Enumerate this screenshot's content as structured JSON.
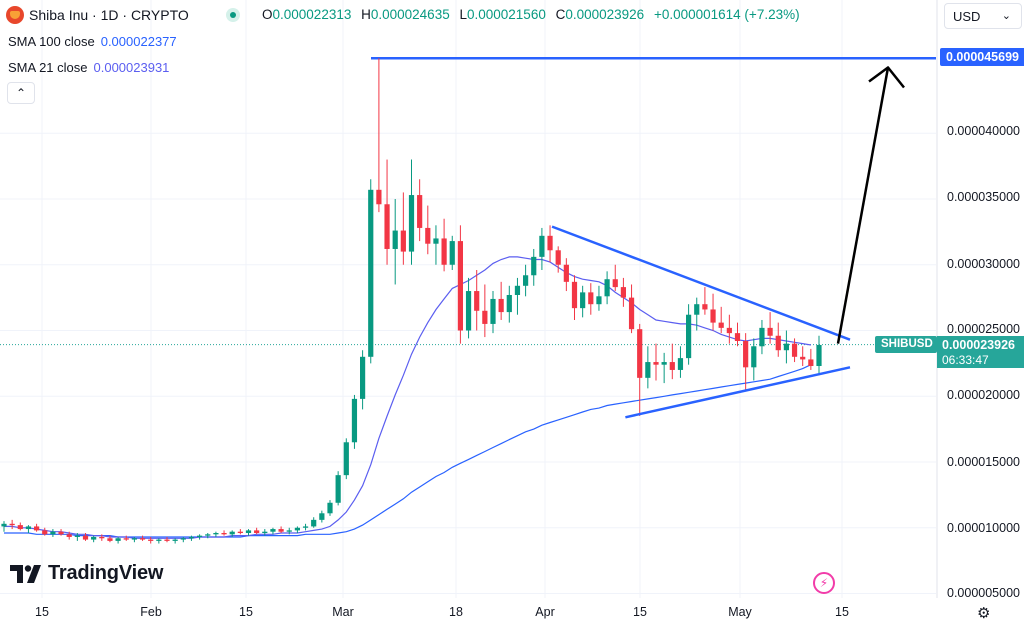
{
  "header": {
    "symbol_title": "Shiba Inu · 1D · CRYPTO",
    "ohlc": [
      {
        "label": "O",
        "value": "0.000022313"
      },
      {
        "label": "H",
        "value": "0.000024635"
      },
      {
        "label": "L",
        "value": "0.000021560"
      },
      {
        "label": "C",
        "value": "0.000023926"
      }
    ],
    "change": "+0.000001614 (+7.23%)",
    "currency": "USD"
  },
  "indicators": [
    {
      "label": "SMA 100 close",
      "value": "0.000022377",
      "color": "#2962ff"
    },
    {
      "label": "SMA 21 close",
      "value": "0.000023931",
      "color": "#5b5ef0"
    }
  ],
  "price_scale": {
    "top_tag": "0.000045699",
    "symbol_tag": "SHIBUSD",
    "last_price": "0.000023926",
    "countdown": "06:33:47"
  },
  "branding": {
    "logo_text": "TradingView"
  },
  "icons": {
    "collapse": "chevron-up-icon",
    "currency_menu": "chevron-down-icon",
    "live": "live-status-icon",
    "bolt": "lightning-icon",
    "settings": "gear-icon"
  },
  "colors": {
    "up": "#089981",
    "down": "#f23645",
    "sma100": "#2962ff",
    "sma21": "#5b5ef0",
    "drawing": "#2962ff",
    "arrow": "#000000"
  },
  "chart_data": {
    "type": "candlestick",
    "title": "Shiba Inu · 1D · CRYPTO",
    "y_axis_ticks": [
      "0.000040000",
      "0.000035000",
      "0.000030000",
      "0.000025000",
      "0.000020000",
      "0.000015000",
      "0.000010000",
      "0.000005000"
    ],
    "x_axis_ticks": [
      "15",
      "Feb",
      "15",
      "Mar",
      "18",
      "Apr",
      "15",
      "May",
      "15"
    ],
    "ylim": [
      4.5e-06,
      5.05e-05
    ],
    "candles_ohlc": [
      [
        1.01e-05,
        1.05e-05,
        9.7e-06,
        1.03e-05
      ],
      [
        1.03e-05,
        1.06e-05,
        9.9e-06,
        1.02e-05
      ],
      [
        1.02e-05,
        1.04e-05,
        9.8e-06,
        9.9e-06
      ],
      [
        9.9e-06,
        1.02e-05,
        9.6e-06,
        1.01e-05
      ],
      [
        1.01e-05,
        1.03e-05,
        9.7e-06,
        9.8e-06
      ],
      [
        9.8e-06,
        1e-05,
        9.4e-06,
        9.5e-06
      ],
      [
        9.5e-06,
        9.9e-06,
        9.3e-06,
        9.7e-06
      ],
      [
        9.7e-06,
        9.9e-06,
        9.4e-06,
        9.5e-06
      ],
      [
        9.5e-06,
        9.7e-06,
        9.1e-06,
        9.3e-06
      ],
      [
        9.3e-06,
        9.6e-06,
        9e-06,
        9.4e-06
      ],
      [
        9.4e-06,
        9.6e-06,
        9e-06,
        9.1e-06
      ],
      [
        9.1e-06,
        9.4e-06,
        8.9e-06,
        9.3e-06
      ],
      [
        9.3e-06,
        9.5e-06,
        9e-06,
        9.2e-06
      ],
      [
        9.2e-06,
        9.4e-06,
        8.9e-06,
        9e-06
      ],
      [
        9e-06,
        9.3e-06,
        8.8e-06,
        9.2e-06
      ],
      [
        9.2e-06,
        9.4e-06,
        9e-06,
        9.1e-06
      ],
      [
        9.1e-06,
        9.3e-06,
        8.9e-06,
        9.2e-06
      ],
      [
        9.2e-06,
        9.4e-06,
        9e-06,
        9.1e-06
      ],
      [
        9.1e-06,
        9.3e-06,
        8.8e-06,
        9e-06
      ],
      [
        9e-06,
        9.2e-06,
        8.8e-06,
        9.1e-06
      ],
      [
        9.1e-06,
        9.3e-06,
        8.9e-06,
        9e-06
      ],
      [
        9e-06,
        9.2e-06,
        8.8e-06,
        9.1e-06
      ],
      [
        9.1e-06,
        9.3e-06,
        8.9e-06,
        9.2e-06
      ],
      [
        9.2e-06,
        9.4e-06,
        9e-06,
        9.3e-06
      ],
      [
        9.3e-06,
        9.5e-06,
        9.1e-06,
        9.4e-06
      ],
      [
        9.4e-06,
        9.6e-06,
        9.2e-06,
        9.5e-06
      ],
      [
        9.5e-06,
        9.7e-06,
        9.3e-06,
        9.6e-06
      ],
      [
        9.6e-06,
        9.8e-06,
        9.4e-06,
        9.5e-06
      ],
      [
        9.5e-06,
        9.8e-06,
        9.3e-06,
        9.7e-06
      ],
      [
        9.7e-06,
        9.9e-06,
        9.5e-06,
        9.6e-06
      ],
      [
        9.6e-06,
        9.9e-06,
        9.4e-06,
        9.8e-06
      ],
      [
        9.8e-06,
        1e-05,
        9.5e-06,
        9.6e-06
      ],
      [
        9.6e-06,
        9.9e-06,
        9.4e-06,
        9.7e-06
      ],
      [
        9.7e-06,
        1e-05,
        9.5e-06,
        9.9e-06
      ],
      [
        9.9e-06,
        1.01e-05,
        9.6e-06,
        9.7e-06
      ],
      [
        9.7e-06,
        1e-05,
        9.5e-06,
        9.8e-06
      ],
      [
        9.8e-06,
        1.01e-05,
        9.6e-06,
        1e-05
      ],
      [
        1e-05,
        1.03e-05,
        9.8e-06,
        1.01e-05
      ],
      [
        1.01e-05,
        1.08e-05,
        1e-05,
        1.06e-05
      ],
      [
        1.06e-05,
        1.13e-05,
        1.04e-05,
        1.11e-05
      ],
      [
        1.11e-05,
        1.21e-05,
        1.09e-05,
        1.19e-05
      ],
      [
        1.19e-05,
        1.43e-05,
        1.17e-05,
        1.4e-05
      ],
      [
        1.4e-05,
        1.68e-05,
        1.37e-05,
        1.65e-05
      ],
      [
        1.65e-05,
        2.01e-05,
        1.6e-05,
        1.98e-05
      ],
      [
        1.98e-05,
        2.35e-05,
        1.9e-05,
        2.3e-05
      ],
      [
        2.3e-05,
        3.65e-05,
        2.25e-05,
        3.57e-05
      ],
      [
        3.57e-05,
        4.57e-05,
        3.4e-05,
        3.46e-05
      ],
      [
        3.46e-05,
        3.8e-05,
        3e-05,
        3.12e-05
      ],
      [
        3.12e-05,
        3.5e-05,
        2.85e-05,
        3.26e-05
      ],
      [
        3.26e-05,
        3.55e-05,
        3e-05,
        3.1e-05
      ],
      [
        3.1e-05,
        3.8e-05,
        3e-05,
        3.53e-05
      ],
      [
        3.53e-05,
        3.65e-05,
        3.18e-05,
        3.28e-05
      ],
      [
        3.28e-05,
        3.45e-05,
        3.08e-05,
        3.16e-05
      ],
      [
        3.16e-05,
        3.3e-05,
        3e-05,
        3.2e-05
      ],
      [
        3.2e-05,
        3.35e-05,
        2.95e-05,
        3e-05
      ],
      [
        3e-05,
        3.22e-05,
        2.96e-05,
        3.18e-05
      ],
      [
        3.18e-05,
        3.3e-05,
        2.4e-05,
        2.5e-05
      ],
      [
        2.5e-05,
        2.9e-05,
        2.44e-05,
        2.8e-05
      ],
      [
        2.8e-05,
        2.96e-05,
        2.5e-05,
        2.65e-05
      ],
      [
        2.65e-05,
        2.85e-05,
        2.45e-05,
        2.55e-05
      ],
      [
        2.55e-05,
        2.8e-05,
        2.48e-05,
        2.74e-05
      ],
      [
        2.74e-05,
        2.87e-05,
        2.58e-05,
        2.64e-05
      ],
      [
        2.64e-05,
        2.84e-05,
        2.56e-05,
        2.77e-05
      ],
      [
        2.77e-05,
        2.9e-05,
        2.62e-05,
        2.84e-05
      ],
      [
        2.84e-05,
        3e-05,
        2.76e-05,
        2.92e-05
      ],
      [
        2.92e-05,
        3.12e-05,
        2.84e-05,
        3.06e-05
      ],
      [
        3.06e-05,
        3.28e-05,
        2.96e-05,
        3.22e-05
      ],
      [
        3.22e-05,
        3.3e-05,
        3.02e-05,
        3.11e-05
      ],
      [
        3.11e-05,
        3.14e-05,
        2.94e-05,
        3e-05
      ],
      [
        3e-05,
        3.05e-05,
        2.8e-05,
        2.87e-05
      ],
      [
        2.87e-05,
        2.92e-05,
        2.58e-05,
        2.67e-05
      ],
      [
        2.67e-05,
        2.84e-05,
        2.6e-05,
        2.79e-05
      ],
      [
        2.79e-05,
        2.86e-05,
        2.62e-05,
        2.7e-05
      ],
      [
        2.7e-05,
        2.84e-05,
        2.65e-05,
        2.76e-05
      ],
      [
        2.76e-05,
        2.95e-05,
        2.7e-05,
        2.89e-05
      ],
      [
        2.89e-05,
        3e-05,
        2.8e-05,
        2.83e-05
      ],
      [
        2.83e-05,
        2.9e-05,
        2.68e-05,
        2.75e-05
      ],
      [
        2.75e-05,
        2.85e-05,
        2.48e-05,
        2.51e-05
      ],
      [
        2.51e-05,
        2.55e-05,
        1.85e-05,
        2.14e-05
      ],
      [
        2.14e-05,
        2.38e-05,
        2.06e-05,
        2.26e-05
      ],
      [
        2.26e-05,
        2.4e-05,
        2.12e-05,
        2.24e-05
      ],
      [
        2.24e-05,
        2.33e-05,
        2.1e-05,
        2.26e-05
      ],
      [
        2.26e-05,
        2.4e-05,
        2.13e-05,
        2.2e-05
      ],
      [
        2.2e-05,
        2.38e-05,
        2.14e-05,
        2.29e-05
      ],
      [
        2.29e-05,
        2.7e-05,
        2.24e-05,
        2.62e-05
      ],
      [
        2.62e-05,
        2.75e-05,
        2.5e-05,
        2.7e-05
      ],
      [
        2.7e-05,
        2.83e-05,
        2.62e-05,
        2.66e-05
      ],
      [
        2.66e-05,
        2.78e-05,
        2.5e-05,
        2.56e-05
      ],
      [
        2.56e-05,
        2.68e-05,
        2.48e-05,
        2.52e-05
      ],
      [
        2.52e-05,
        2.62e-05,
        2.4e-05,
        2.48e-05
      ],
      [
        2.48e-05,
        2.56e-05,
        2.38e-05,
        2.42e-05
      ],
      [
        2.42e-05,
        2.48e-05,
        2.05e-05,
        2.22e-05
      ],
      [
        2.22e-05,
        2.44e-05,
        2.12e-05,
        2.38e-05
      ],
      [
        2.38e-05,
        2.58e-05,
        2.32e-05,
        2.52e-05
      ],
      [
        2.52e-05,
        2.64e-05,
        2.4e-05,
        2.46e-05
      ],
      [
        2.46e-05,
        2.56e-05,
        2.3e-05,
        2.35e-05
      ],
      [
        2.35e-05,
        2.5e-05,
        2.25e-05,
        2.4e-05
      ],
      [
        2.4e-05,
        2.44e-05,
        2.26e-05,
        2.3e-05
      ],
      [
        2.3e-05,
        2.38e-05,
        2.23e-05,
        2.28e-05
      ],
      [
        2.28e-05,
        2.36e-05,
        2.2e-05,
        2.23e-05
      ],
      [
        2.23e-05,
        2.46e-05,
        2.16e-05,
        2.39e-05
      ]
    ],
    "sma21_values": [
      1.01e-05,
      1.01e-05,
      1e-05,
      1e-05,
      9.9e-06,
      9.8e-06,
      9.7e-06,
      9.7e-06,
      9.6e-06,
      9.5e-06,
      9.5e-06,
      9.4e-06,
      9.4e-06,
      9.3e-06,
      9.3e-06,
      9.3e-06,
      9.2e-06,
      9.2e-06,
      9.2e-06,
      9.2e-06,
      9.2e-06,
      9.2e-06,
      9.2e-06,
      9.2e-06,
      9.3e-06,
      9.3e-06,
      9.3e-06,
      9.3e-06,
      9.4e-06,
      9.4e-06,
      9.4e-06,
      9.5e-06,
      9.5e-06,
      9.5e-06,
      9.6e-06,
      9.6e-06,
      9.6e-06,
      9.7e-06,
      9.8e-06,
      9.9e-06,
      1.01e-05,
      1.06e-05,
      1.12e-05,
      1.21e-05,
      1.32e-05,
      1.48e-05,
      1.68e-05,
      1.85e-05,
      2.01e-05,
      2.16e-05,
      2.32e-05,
      2.45e-05,
      2.56e-05,
      2.66e-05,
      2.74e-05,
      2.82e-05,
      2.85e-05,
      2.88e-05,
      2.92e-05,
      2.96e-05,
      3.01e-05,
      3.04e-05,
      3.06e-05,
      3.06e-05,
      3.05e-05,
      3.04e-05,
      3.04e-05,
      3.02e-05,
      2.98e-05,
      2.94e-05,
      2.91e-05,
      2.89e-05,
      2.88e-05,
      2.87e-05,
      2.84e-05,
      2.79e-05,
      2.75e-05,
      2.71e-05,
      2.66e-05,
      2.62e-05,
      2.58e-05,
      2.57e-05,
      2.56e-05,
      2.55e-05,
      2.55e-05,
      2.54e-05,
      2.52e-05,
      2.5e-05,
      2.47e-05,
      2.45e-05,
      2.43e-05,
      2.42e-05,
      2.43e-05,
      2.44e-05,
      2.44e-05,
      2.43e-05,
      2.42e-05,
      2.41e-05,
      2.4e-05,
      2.39e-05
    ],
    "sma100_values": [
      9.6e-06,
      9.6e-06,
      9.6e-06,
      9.6e-06,
      9.5e-06,
      9.5e-06,
      9.5e-06,
      9.5e-06,
      9.5e-06,
      9.4e-06,
      9.4e-06,
      9.4e-06,
      9.4e-06,
      9.4e-06,
      9.3e-06,
      9.3e-06,
      9.3e-06,
      9.3e-06,
      9.3e-06,
      9.3e-06,
      9.3e-06,
      9.3e-06,
      9.3e-06,
      9.3e-06,
      9.3e-06,
      9.3e-06,
      9.3e-06,
      9.3e-06,
      9.3e-06,
      9.3e-06,
      9.4e-06,
      9.4e-06,
      9.4e-06,
      9.4e-06,
      9.4e-06,
      9.4e-06,
      9.4e-06,
      9.5e-06,
      9.5e-06,
      9.5e-06,
      9.5e-06,
      9.6e-06,
      9.7e-06,
      9.9e-06,
      1.02e-05,
      1.06e-05,
      1.1e-05,
      1.14e-05,
      1.18e-05,
      1.22e-05,
      1.27e-05,
      1.31e-05,
      1.35e-05,
      1.39e-05,
      1.42e-05,
      1.46e-05,
      1.49e-05,
      1.52e-05,
      1.55e-05,
      1.58e-05,
      1.61e-05,
      1.64e-05,
      1.67e-05,
      1.7e-05,
      1.73e-05,
      1.75e-05,
      1.78e-05,
      1.8e-05,
      1.82e-05,
      1.84e-05,
      1.86e-05,
      1.88e-05,
      1.9e-05,
      1.91e-05,
      1.93e-05,
      1.94e-05,
      1.95e-05,
      1.96e-05,
      1.97e-05,
      1.98e-05,
      1.99e-05,
      2e-05,
      2.01e-05,
      2.02e-05,
      2.03e-05,
      2.04e-05,
      2.05e-05,
      2.06e-05,
      2.07e-05,
      2.08e-05,
      2.09e-05,
      2.1e-05,
      2.11e-05,
      2.12e-05,
      2.13e-05,
      2.15e-05,
      2.17e-05,
      2.19e-05,
      2.21e-05,
      2.24e-05
    ],
    "last_price": 2.3926e-05,
    "drawings": {
      "resistance_level": 4.5699e-05,
      "triangle_upper": {
        "start_candle": 67,
        "start_price": 3.29e-05,
        "end_price": 2.43e-05
      },
      "triangle_lower": {
        "start_candle": 76,
        "start_price": 1.84e-05,
        "end_price": 2.22e-05
      },
      "arrow": {
        "from_price": 2.4e-05,
        "to_price": 4.5e-05
      }
    }
  }
}
